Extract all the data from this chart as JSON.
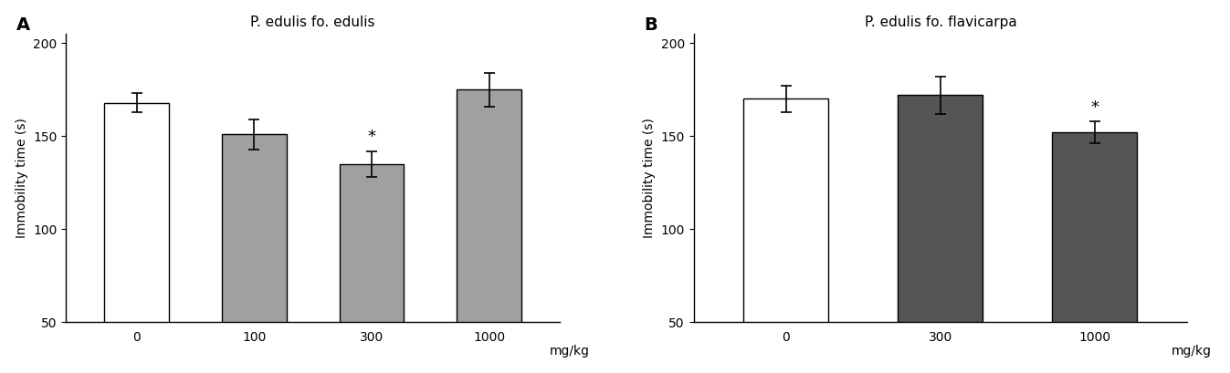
{
  "panel_A": {
    "title": "P. edulis fo. edulis",
    "label": "A",
    "categories": [
      "0",
      "100",
      "300",
      "1000"
    ],
    "values": [
      168,
      151,
      135,
      175
    ],
    "errors": [
      5,
      8,
      7,
      9
    ],
    "colors": [
      "#ffffff",
      "#a0a0a0",
      "#a0a0a0",
      "#a0a0a0"
    ],
    "edge_colors": [
      "#000000",
      "#000000",
      "#000000",
      "#000000"
    ],
    "sig_markers": [
      null,
      null,
      "*",
      null
    ],
    "xlabel_unit": "mg/kg",
    "ylabel": "Immobility time (s)",
    "ylim": [
      50,
      205
    ],
    "yticks": [
      50,
      100,
      150,
      200
    ]
  },
  "panel_B": {
    "title": "P. edulis fo. flavicarpa",
    "label": "B",
    "categories": [
      "0",
      "300",
      "1000"
    ],
    "values": [
      170,
      172,
      152
    ],
    "errors": [
      7,
      10,
      6
    ],
    "colors": [
      "#ffffff",
      "#555555",
      "#555555"
    ],
    "edge_colors": [
      "#000000",
      "#000000",
      "#000000"
    ],
    "sig_markers": [
      null,
      null,
      "*"
    ],
    "xlabel_unit": "mg/kg",
    "ylabel": "Immobility time (s)",
    "ylim": [
      50,
      205
    ],
    "yticks": [
      50,
      100,
      150,
      200
    ]
  },
  "figure_width": 13.47,
  "figure_height": 4.09,
  "dpi": 100,
  "bar_width": 0.55,
  "background_color": "#ffffff",
  "capsize": 4,
  "fontsize_title": 11,
  "fontsize_labels": 10,
  "fontsize_ticks": 10,
  "fontsize_sig": 13,
  "fontsize_panel_label": 14
}
